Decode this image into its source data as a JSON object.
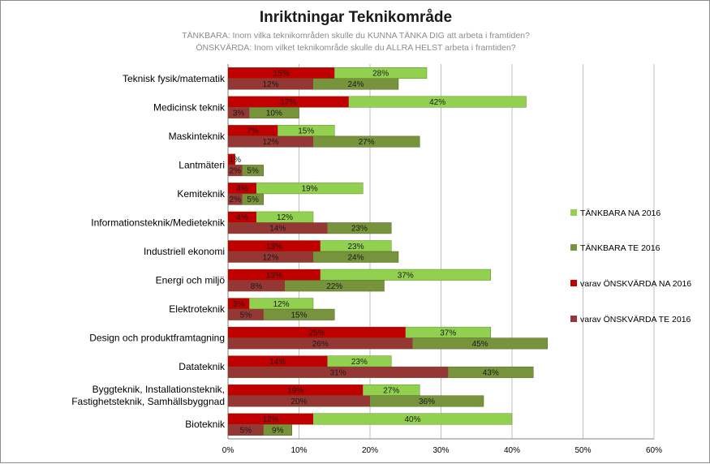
{
  "chart_data": {
    "type": "bar",
    "orientation": "horizontal",
    "title": "Inriktningar Teknikområde",
    "subtitle": [
      "TÄNKBARA: Inom vilka teknikområden skulle du KUNNA TÄNKA DIG att arbeta i framtiden?",
      "ÖNSKVÄRDA: Inom vilket teknikområde skulle du ALLRA HELST arbeta i framtiden?"
    ],
    "categories": [
      "Teknisk fysik/matematik",
      "Medicinsk teknik",
      "Maskinteknik",
      "Lantmäteri",
      "Kemiteknik",
      "Informationsteknik/Medieteknik",
      "Industriell ekonomi",
      "Energi och miljö",
      "Elektroteknik",
      "Design och produktframtagning",
      "Datateknik",
      "Byggteknik, Installationsteknik,\nFastighetsteknik, Samhällsbyggnad",
      "Bioteknik"
    ],
    "series": [
      {
        "name": "TÄNKBARA NA 2016",
        "color": "#92d050",
        "values": [
          28,
          42,
          15,
          1,
          19,
          12,
          23,
          37,
          12,
          37,
          23,
          27,
          40
        ],
        "labels": [
          "28%",
          "42%",
          "15%",
          "1%",
          "19%",
          "12%",
          "23%",
          "37%",
          "12%",
          "37%",
          "23%",
          "27%",
          "40%"
        ]
      },
      {
        "name": "TÄNKBARA TE 2016",
        "color": "#77933c",
        "values": [
          24,
          10,
          27,
          5,
          5,
          23,
          24,
          22,
          15,
          45,
          43,
          36,
          9
        ],
        "labels": [
          "24%",
          "10%",
          "27%",
          "5%",
          "5%",
          "23%",
          "24%",
          "22%",
          "15%",
          "45%",
          "43%",
          "36%",
          "9%"
        ]
      },
      {
        "name": "varav ÖNSKVÄRDA NA 2016",
        "color": "#c00000",
        "values": [
          15,
          17,
          7,
          1,
          4,
          4,
          13,
          13,
          3,
          25,
          14,
          19,
          12
        ],
        "labels": [
          "15%",
          "17%",
          "7%",
          "",
          "4%",
          "4%",
          "13%",
          "13%",
          "3%",
          "25%",
          "14%",
          "19%",
          "12%"
        ]
      },
      {
        "name": "varav ÖNSKVÄRDA TE 2016",
        "color": "#953735",
        "values": [
          12,
          3,
          12,
          2,
          2,
          14,
          12,
          8,
          5,
          26,
          31,
          20,
          5
        ],
        "labels": [
          "12%",
          "3%",
          "12%",
          "2%",
          "2%",
          "14%",
          "12%",
          "8%",
          "5%",
          "26%",
          "31%",
          "20%",
          "5%"
        ]
      }
    ],
    "xlim": [
      0,
      60
    ],
    "xticks": [
      "0%",
      "10%",
      "20%",
      "30%",
      "40%",
      "50%",
      "60%"
    ],
    "grid": true,
    "legend_position": "right"
  }
}
